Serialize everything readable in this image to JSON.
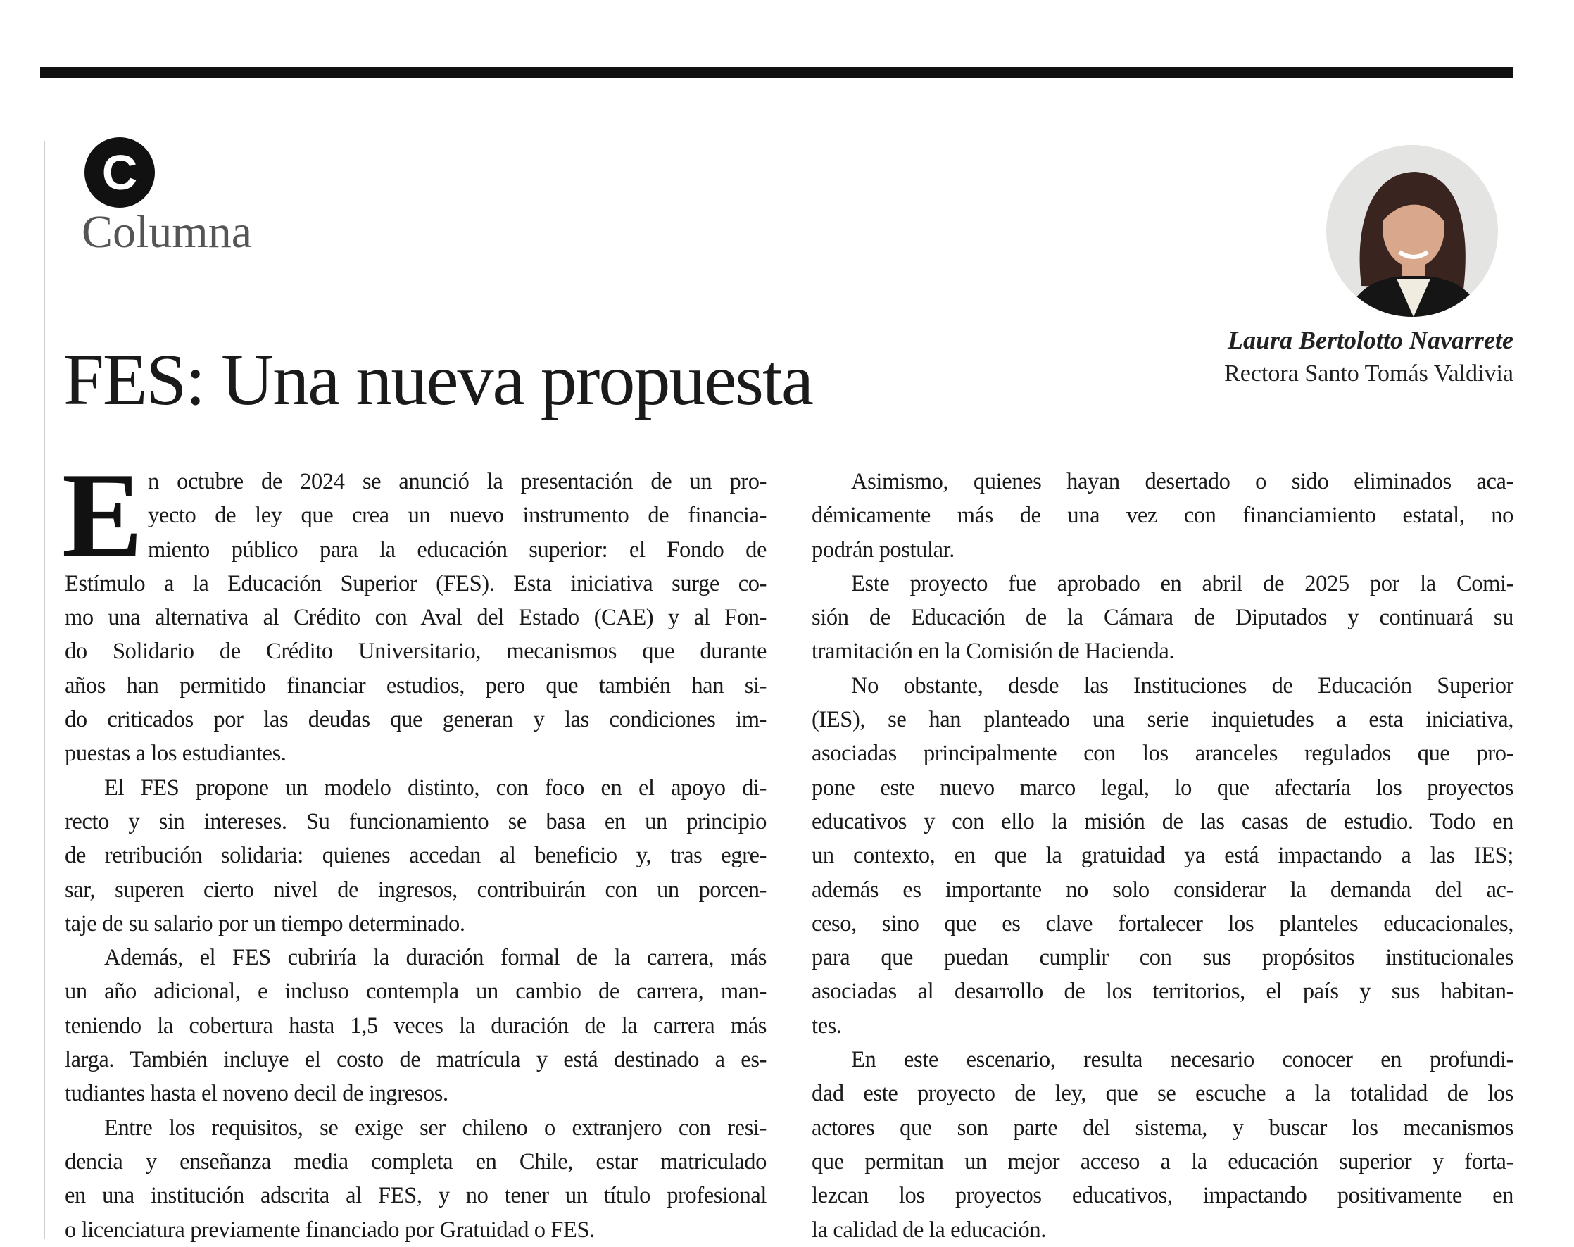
{
  "header": {
    "section_badge": "C",
    "section_label": "Columna",
    "title": "FES: Una nueva propuesta"
  },
  "author": {
    "name": "Laura Bertolotto Navarrete",
    "role": "Rectora Santo Tomás Valdivia"
  },
  "article": {
    "drop_cap": "E",
    "columns": [
      [
        {
          "lines": [
            "n octubre de 2024 se anunció la presentación de un pro-",
            "yecto de ley que crea un nuevo instrumento de financia-",
            "miento público para la educación superior: el Fondo de",
            "Estímulo a la Educación Superior (FES). Esta iniciativa surge co-",
            "mo una alternativa al Crédito con Aval del Estado (CAE) y al Fon-",
            "do Solidario de Crédito Universitario, mecanismos que durante",
            "años han permitido financiar estudios, pero que también han si-",
            "do criticados por las deudas que generan y las condiciones im-",
            "puestas a los estudiantes."
          ]
        },
        {
          "lines": [
            "El FES propone un modelo distinto, con foco en el apoyo di-",
            "recto y sin intereses. Su funcionamiento se basa en un principio",
            "de retribución solidaria: quienes accedan al beneficio y, tras egre-",
            "sar, superen cierto nivel de ingresos, contribuirán con un porcen-",
            "taje de su salario por un tiempo determinado."
          ]
        },
        {
          "lines": [
            "Además, el FES cubriría la duración formal de la carrera, más",
            "un año adicional, e incluso contempla un cambio de carrera, man-",
            "teniendo la cobertura hasta 1,5 veces la duración de la carrera más",
            "larga. También incluye el costo de matrícula y está destinado a es-",
            "tudiantes hasta el noveno decil de ingresos."
          ]
        },
        {
          "lines": [
            "Entre los requisitos, se exige ser chileno o extranjero con resi-",
            "dencia y enseñanza media completa en Chile, estar matriculado",
            "en una institución adscrita al FES, y no tener un título profesional",
            "o licenciatura previamente financiado por Gratuidad o FES."
          ]
        }
      ],
      [
        {
          "lines": [
            "Asimismo, quienes hayan desertado o sido eliminados aca-",
            "démicamente más de una vez con financiamiento estatal, no",
            "podrán postular."
          ]
        },
        {
          "lines": [
            "Este proyecto fue aprobado en abril de 2025 por la Comi-",
            "sión de Educación de la Cámara de Diputados y continuará su",
            "tramitación en la Comisión de Hacienda."
          ]
        },
        {
          "lines": [
            "No obstante, desde las Instituciones de Educación Superior",
            "(IES), se han planteado una serie inquietudes a esta iniciativa,",
            "asociadas principalmente con los aranceles regulados que pro-",
            "pone este nuevo marco legal, lo que afectaría los proyectos",
            "educativos y con ello la misión de las casas de estudio. Todo en",
            "un contexto, en que la gratuidad ya está impactando a las IES;",
            "además es importante no solo considerar la demanda del ac-",
            "ceso, sino que es clave fortalecer los planteles educacionales,",
            "para que puedan cumplir con sus propósitos institucionales",
            "asociadas al desarrollo de los territorios, el país y sus habitan-",
            "tes."
          ]
        },
        {
          "lines": [
            "En este escenario, resulta necesario conocer en profundi-",
            "dad este proyecto de ley, que se escuche a la totalidad de los",
            "actores que son parte del sistema, y buscar los mecanismos",
            "que permitan un mejor acceso a la educación superior y forta-",
            "lezcan los proyectos educativos, impactando positivamente en",
            "la calidad de la educación."
          ]
        }
      ]
    ]
  }
}
